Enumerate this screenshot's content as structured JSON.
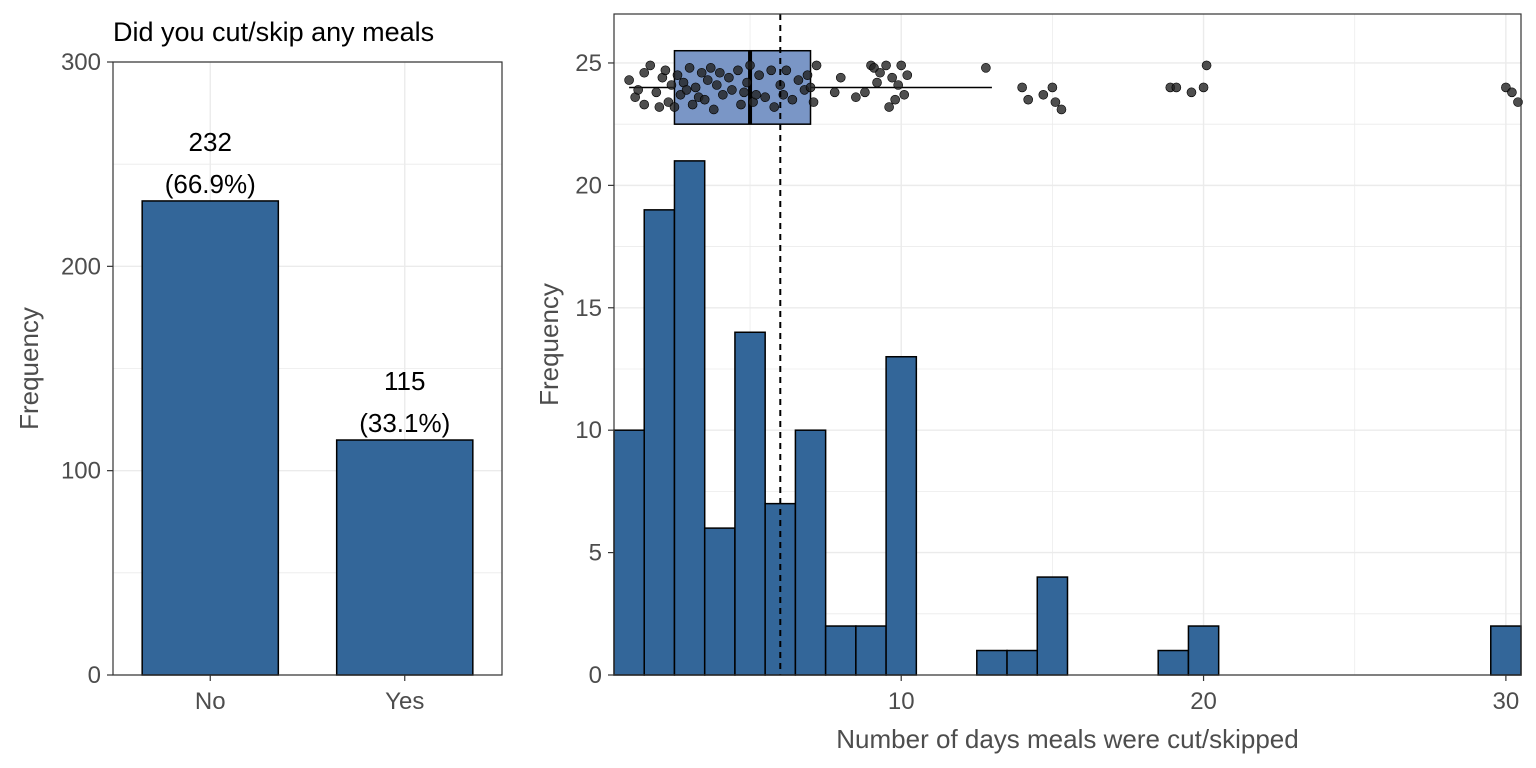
{
  "colors": {
    "bar_fill": "#336699",
    "bar_stroke": "#000000",
    "box_fill": "#7a96c6",
    "grid": "#ebebeb",
    "axis_text": "#4d4d4d",
    "label_text": "#000000",
    "point": "#222222"
  },
  "chart_data": [
    {
      "type": "bar",
      "title": "Did you cut/skip any meals",
      "xlabel": "",
      "ylabel": "Frequency",
      "categories": [
        "No",
        "Yes"
      ],
      "values": [
        232,
        115
      ],
      "percent_labels": [
        "(66.9%)",
        "(33.1%)"
      ],
      "value_labels": [
        "232",
        "115"
      ],
      "ylim": [
        0,
        300
      ],
      "yticks": [
        0,
        100,
        200,
        300
      ],
      "grid": true
    },
    {
      "type": "histogram",
      "title": "",
      "xlabel": "Number of days meals were cut/skipped",
      "ylabel": "Frequency",
      "xlim": [
        0.5,
        30.5
      ],
      "ylim": [
        0,
        27
      ],
      "xticks": [
        10,
        20,
        30
      ],
      "yticks": [
        0,
        5,
        10,
        15,
        20,
        25
      ],
      "grid": true,
      "bins": [
        {
          "x0": 0.5,
          "x1": 1.5,
          "count": 10
        },
        {
          "x0": 1.5,
          "x1": 2.5,
          "count": 19
        },
        {
          "x0": 2.5,
          "x1": 3.5,
          "count": 21
        },
        {
          "x0": 3.5,
          "x1": 4.5,
          "count": 6
        },
        {
          "x0": 4.5,
          "x1": 5.5,
          "count": 14
        },
        {
          "x0": 5.5,
          "x1": 6.5,
          "count": 7
        },
        {
          "x0": 6.5,
          "x1": 7.5,
          "count": 10
        },
        {
          "x0": 7.5,
          "x1": 8.5,
          "count": 2
        },
        {
          "x0": 8.5,
          "x1": 9.5,
          "count": 2
        },
        {
          "x0": 9.5,
          "x1": 10.5,
          "count": 13
        },
        {
          "x0": 12.5,
          "x1": 13.5,
          "count": 1
        },
        {
          "x0": 13.5,
          "x1": 14.5,
          "count": 1
        },
        {
          "x0": 14.5,
          "x1": 15.5,
          "count": 4
        },
        {
          "x0": 18.5,
          "x1": 19.5,
          "count": 1
        },
        {
          "x0": 19.5,
          "x1": 20.5,
          "count": 2
        },
        {
          "x0": 29.5,
          "x1": 30.5,
          "count": 2
        }
      ],
      "mean": 6,
      "boxplot": {
        "min": 1,
        "q1": 2.5,
        "median": 5,
        "q3": 7,
        "whisker_high": 13,
        "box_y_low": 22.5,
        "box_y_high": 25.5,
        "y_center": 24
      },
      "points": [
        {
          "x": 1,
          "y": 24.3
        },
        {
          "x": 1.2,
          "y": 23.6
        },
        {
          "x": 1.3,
          "y": 23.9
        },
        {
          "x": 1.5,
          "y": 24.6
        },
        {
          "x": 1.5,
          "y": 23.3
        },
        {
          "x": 1.7,
          "y": 24.9
        },
        {
          "x": 1.9,
          "y": 23.8
        },
        {
          "x": 2.0,
          "y": 23.2
        },
        {
          "x": 2.1,
          "y": 24.4
        },
        {
          "x": 2.2,
          "y": 24.7
        },
        {
          "x": 2.3,
          "y": 23.4
        },
        {
          "x": 2.4,
          "y": 24.1
        },
        {
          "x": 2.5,
          "y": 23.2
        },
        {
          "x": 2.6,
          "y": 24.5
        },
        {
          "x": 2.7,
          "y": 23.7
        },
        {
          "x": 2.8,
          "y": 24.2
        },
        {
          "x": 2.9,
          "y": 23.9
        },
        {
          "x": 3.0,
          "y": 24.8
        },
        {
          "x": 3.1,
          "y": 23.3
        },
        {
          "x": 3.2,
          "y": 24.0
        },
        {
          "x": 3.3,
          "y": 23.6
        },
        {
          "x": 3.4,
          "y": 24.6
        },
        {
          "x": 3.5,
          "y": 23.5
        },
        {
          "x": 3.6,
          "y": 24.3
        },
        {
          "x": 3.7,
          "y": 24.8
        },
        {
          "x": 3.8,
          "y": 23.1
        },
        {
          "x": 3.9,
          "y": 24.1
        },
        {
          "x": 4.0,
          "y": 24.6
        },
        {
          "x": 4.1,
          "y": 23.7
        },
        {
          "x": 4.3,
          "y": 24.4
        },
        {
          "x": 4.4,
          "y": 23.9
        },
        {
          "x": 4.6,
          "y": 24.7
        },
        {
          "x": 4.7,
          "y": 23.3
        },
        {
          "x": 4.8,
          "y": 23.8
        },
        {
          "x": 4.9,
          "y": 24.2
        },
        {
          "x": 5.0,
          "y": 24.9
        },
        {
          "x": 5.1,
          "y": 23.4
        },
        {
          "x": 5.2,
          "y": 23.7
        },
        {
          "x": 5.3,
          "y": 24.5
        },
        {
          "x": 5.5,
          "y": 23.6
        },
        {
          "x": 5.7,
          "y": 24.7
        },
        {
          "x": 5.8,
          "y": 23.2
        },
        {
          "x": 6.0,
          "y": 24.1
        },
        {
          "x": 6.1,
          "y": 23.7
        },
        {
          "x": 6.2,
          "y": 24.7
        },
        {
          "x": 6.4,
          "y": 23.5
        },
        {
          "x": 6.6,
          "y": 24.3
        },
        {
          "x": 6.8,
          "y": 23.9
        },
        {
          "x": 6.9,
          "y": 24.5
        },
        {
          "x": 7.0,
          "y": 24.0
        },
        {
          "x": 7.1,
          "y": 23.4
        },
        {
          "x": 7.2,
          "y": 24.9
        },
        {
          "x": 7.8,
          "y": 23.8
        },
        {
          "x": 8.0,
          "y": 24.4
        },
        {
          "x": 8.5,
          "y": 23.6
        },
        {
          "x": 8.8,
          "y": 23.8
        },
        {
          "x": 9.0,
          "y": 24.9
        },
        {
          "x": 9.1,
          "y": 24.8
        },
        {
          "x": 9.2,
          "y": 24.2
        },
        {
          "x": 9.3,
          "y": 24.6
        },
        {
          "x": 9.5,
          "y": 24.9
        },
        {
          "x": 9.6,
          "y": 23.2
        },
        {
          "x": 9.7,
          "y": 24.4
        },
        {
          "x": 9.8,
          "y": 23.5
        },
        {
          "x": 9.9,
          "y": 24.1
        },
        {
          "x": 10.0,
          "y": 24.9
        },
        {
          "x": 10.1,
          "y": 23.7
        },
        {
          "x": 10.2,
          "y": 24.5
        },
        {
          "x": 12.8,
          "y": 24.8
        },
        {
          "x": 14.0,
          "y": 24.0
        },
        {
          "x": 14.2,
          "y": 23.5
        },
        {
          "x": 14.7,
          "y": 23.7
        },
        {
          "x": 15.0,
          "y": 24.0
        },
        {
          "x": 15.1,
          "y": 23.4
        },
        {
          "x": 15.3,
          "y": 23.1
        },
        {
          "x": 18.9,
          "y": 24.0
        },
        {
          "x": 19.1,
          "y": 24.0
        },
        {
          "x": 19.6,
          "y": 23.8
        },
        {
          "x": 20.0,
          "y": 24.0
        },
        {
          "x": 20.1,
          "y": 24.9
        },
        {
          "x": 30.0,
          "y": 24.0
        },
        {
          "x": 30.2,
          "y": 23.8
        },
        {
          "x": 30.4,
          "y": 23.4
        }
      ]
    }
  ]
}
